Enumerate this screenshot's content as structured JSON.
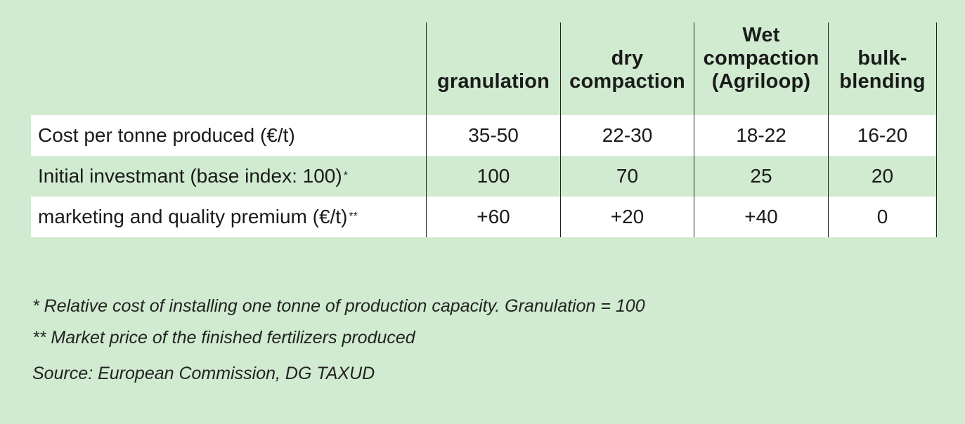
{
  "table": {
    "headers": [
      "",
      "granulation",
      "dry compaction",
      "Wet compaction (Agriloop)",
      "bulk-blending"
    ],
    "header_lines": [
      [],
      [
        "granulation"
      ],
      [
        "dry",
        "compaction"
      ],
      [
        "Wet",
        "compaction",
        "(Agriloop)"
      ],
      [
        "bulk-",
        "blending"
      ]
    ],
    "rows": [
      {
        "label": "Cost per tonne produced (€/t)",
        "marker": "",
        "values": [
          "35-50",
          "22-30",
          "18-22",
          "16-20"
        ]
      },
      {
        "label": "Initial investmant (base index: 100)",
        "marker": "*",
        "values": [
          "100",
          "70",
          "25",
          "20"
        ]
      },
      {
        "label": "marketing and quality premium (€/t)",
        "marker": "**",
        "values": [
          "+60",
          "+20",
          "+40",
          "0"
        ]
      }
    ]
  },
  "notes": {
    "footnote_1": "* Relative cost of installing one tonne of production capacity. Granulation = 100",
    "footnote_2": "** Market price of the finished fertilizers produced",
    "source": "Source: European Commission, DG TAXUD"
  },
  "colors": {
    "background": "#d0ebd0",
    "row_white": "#ffffff",
    "text": "#1a1a1a"
  }
}
